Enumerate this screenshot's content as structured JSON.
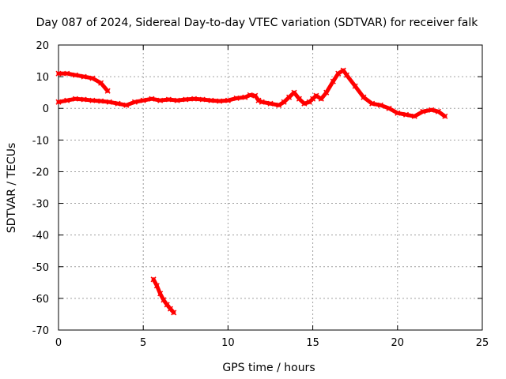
{
  "chart_data": {
    "type": "scatter",
    "title": "Day 087 of 2024, Sidereal Day-to-day VTEC variation (SDTVAR) for receiver falk",
    "xlabel": "GPS time / hours",
    "ylabel": "SDTVAR / TECUs",
    "xlim": [
      0,
      25
    ],
    "ylim": [
      -70,
      20
    ],
    "xticks": [
      0,
      5,
      10,
      15,
      20,
      25
    ],
    "yticks": [
      20,
      10,
      0,
      -10,
      -20,
      -30,
      -40,
      -50,
      -60,
      -70
    ],
    "grid": true,
    "legend": "none",
    "color": "#ff0000",
    "series": [
      {
        "name": "main-track",
        "points": [
          [
            0.0,
            2.0
          ],
          [
            0.5,
            2.5
          ],
          [
            1.0,
            3.0
          ],
          [
            1.5,
            2.8
          ],
          [
            2.0,
            2.5
          ],
          [
            2.5,
            2.3
          ],
          [
            3.0,
            2.0
          ],
          [
            3.5,
            1.5
          ],
          [
            4.0,
            1.0
          ],
          [
            4.5,
            2.0
          ],
          [
            5.0,
            2.5
          ],
          [
            5.5,
            3.0
          ],
          [
            6.0,
            2.5
          ],
          [
            6.5,
            2.8
          ],
          [
            7.0,
            2.5
          ],
          [
            7.5,
            2.8
          ],
          [
            8.0,
            3.0
          ],
          [
            8.5,
            2.8
          ],
          [
            9.0,
            2.5
          ],
          [
            9.5,
            2.3
          ],
          [
            10.0,
            2.5
          ],
          [
            10.5,
            3.2
          ],
          [
            11.0,
            3.5
          ],
          [
            11.3,
            4.2
          ],
          [
            11.6,
            4.0
          ],
          [
            11.8,
            2.5
          ],
          [
            12.0,
            2.0
          ],
          [
            12.5,
            1.5
          ],
          [
            13.0,
            1.0
          ],
          [
            13.3,
            2.0
          ],
          [
            13.6,
            3.5
          ],
          [
            13.9,
            5.0
          ],
          [
            14.2,
            3.0
          ],
          [
            14.5,
            1.5
          ],
          [
            14.8,
            2.0
          ],
          [
            15.0,
            3.0
          ],
          [
            15.2,
            4.0
          ],
          [
            15.5,
            3.0
          ],
          [
            15.8,
            5.0
          ],
          [
            16.2,
            8.5
          ],
          [
            16.5,
            11.0
          ],
          [
            16.8,
            12.0
          ],
          [
            17.0,
            10.5
          ],
          [
            17.5,
            7.0
          ],
          [
            18.0,
            3.5
          ],
          [
            18.5,
            1.5
          ],
          [
            19.0,
            1.0
          ],
          [
            19.5,
            0.0
          ],
          [
            20.0,
            -1.5
          ],
          [
            20.5,
            -2.0
          ],
          [
            21.0,
            -2.5
          ],
          [
            21.5,
            -1.0
          ],
          [
            22.0,
            -0.5
          ],
          [
            22.4,
            -1.0
          ],
          [
            22.8,
            -2.5
          ]
        ]
      },
      {
        "name": "upper-track",
        "points": [
          [
            0.0,
            11.0
          ],
          [
            0.5,
            11.0
          ],
          [
            1.0,
            10.5
          ],
          [
            1.5,
            10.0
          ],
          [
            2.0,
            9.5
          ],
          [
            2.5,
            8.0
          ],
          [
            2.9,
            5.5
          ]
        ]
      },
      {
        "name": "low-track",
        "points": [
          [
            5.6,
            -54.0
          ],
          [
            5.8,
            -56.0
          ],
          [
            6.0,
            -58.5
          ],
          [
            6.2,
            -60.5
          ],
          [
            6.4,
            -62.0
          ],
          [
            6.6,
            -63.3
          ],
          [
            6.8,
            -64.5
          ]
        ]
      }
    ]
  }
}
